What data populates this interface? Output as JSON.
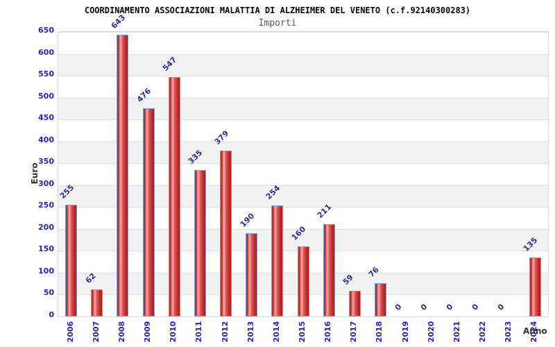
{
  "title": "COORDINAMENTO ASSOCIAZIONI MALATTIA DI ALZHEIMER DEL VENETO (c.f.92140300283)",
  "subtitle": "Importi",
  "chart_data": {
    "type": "bar",
    "categories": [
      "2006",
      "2007",
      "2008",
      "2009",
      "2010",
      "2011",
      "2012",
      "2013",
      "2014",
      "2015",
      "2016",
      "2017",
      "2018",
      "2019",
      "2020",
      "2021",
      "2022",
      "2023",
      "2024"
    ],
    "values": [
      255,
      62,
      643,
      476,
      547,
      335,
      379,
      190,
      254,
      160,
      211,
      59,
      76,
      0,
      0,
      0,
      0,
      0,
      135
    ],
    "title": "COORDINAMENTO ASSOCIAZIONI MALATTIA DI ALZHEIMER DEL VENETO (c.f.92140300283)",
    "subtitle": "Importi",
    "xlabel": "Anno",
    "ylabel": "Euro",
    "ylim": [
      0,
      650
    ],
    "ytick_step": 50,
    "grid": "horizontal-bands-alternating",
    "legend": "none",
    "value_labels_shown": true,
    "colors": {
      "tick_label": "#2222cc",
      "value_label": "#2d2d96",
      "band_gray": "#f2f2f2",
      "band_white": "#ffffff",
      "gridline": "#e0e0e0",
      "plot_border": "#d8d8d8",
      "bar_border": "#6fa8dc",
      "bar_gradient": [
        "#cf3a3a",
        "#b01f1f",
        "#e36a6a",
        "#f7adad",
        "#e05555",
        "#c53232",
        "#a81d1d"
      ],
      "axis_title": "#333333",
      "title": "#000000",
      "subtitle": "#595959"
    }
  }
}
